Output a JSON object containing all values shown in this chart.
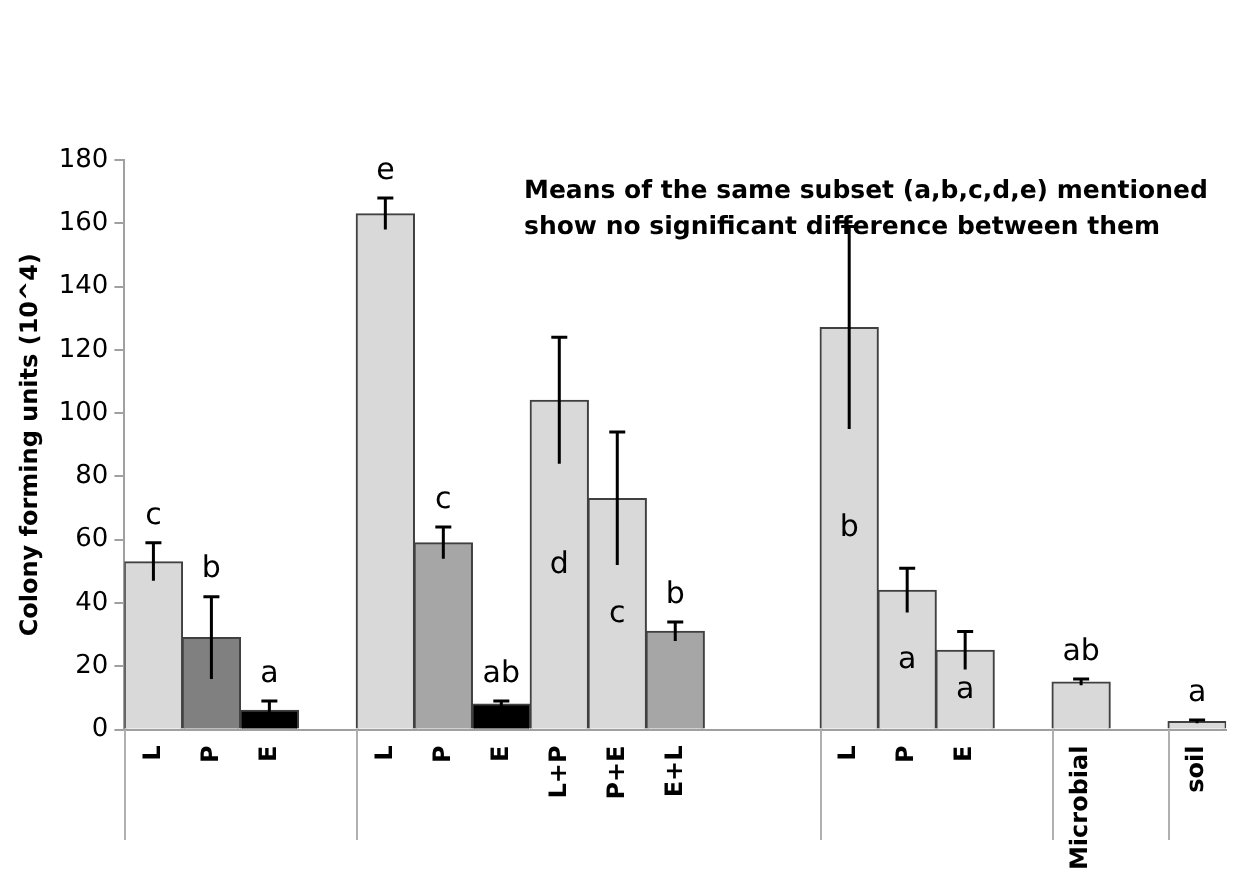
{
  "chart_data": {
    "type": "bar",
    "ylabel": "Colony forming units (10^4)",
    "categories": [
      "L",
      "P",
      "E",
      null,
      "L",
      "P",
      "E",
      "L+P",
      "P+E",
      "E+L",
      null,
      null,
      "L",
      "P",
      "E",
      null,
      "Microbial",
      null,
      "soil"
    ],
    "values": [
      53,
      29,
      6,
      null,
      163,
      59,
      8,
      104,
      73,
      31,
      null,
      null,
      127,
      44,
      25,
      null,
      15,
      null,
      2.5
    ],
    "errors": [
      6,
      13,
      3,
      null,
      5,
      5,
      1,
      20,
      21,
      3,
      null,
      null,
      32,
      7,
      6,
      null,
      1,
      null,
      0.5
    ],
    "colors": [
      "#d9d9d9",
      "#808080",
      "#000000",
      "#d9d9d9",
      "#d9d9d9",
      "#a6a6a6",
      "#000000",
      "#d9d9d9",
      "#d9d9d9",
      "#a6a6a6",
      "#d9d9d9",
      "#d9d9d9",
      "#d9d9d9",
      "#d9d9d9",
      "#d9d9d9",
      "#d9d9d9",
      "#d9d9d9",
      "#d9d9d9",
      "#d9d9d9"
    ],
    "value_labels": [
      "c",
      "b",
      "a",
      null,
      "e",
      "c",
      "ab",
      "d",
      "c",
      "b",
      null,
      null,
      "b",
      "a",
      "a",
      null,
      "ab",
      null,
      "a"
    ],
    "ylim": [
      0,
      180
    ],
    "yticks": [
      0,
      20,
      40,
      60,
      80,
      100,
      120,
      140,
      160,
      180
    ],
    "grid": false,
    "legend": false,
    "annotations": [
      "Means of the same subset (a,b,c,d,e) mentioned show no significant difference between them"
    ]
  }
}
